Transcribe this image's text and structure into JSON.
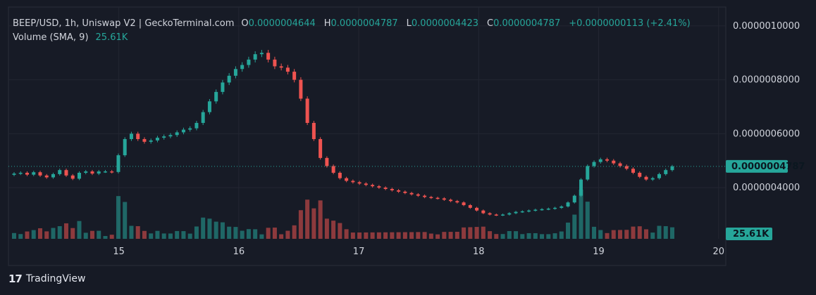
{
  "header": {
    "title": "BEEP/USD, 1h, Uniswap V2 | GeckoTerminal.com",
    "open_label": "O",
    "open": "0.0000004644",
    "high_label": "H",
    "high": "0.0000004787",
    "low_label": "L",
    "low": "0.0000004423",
    "close_label": "C",
    "close": "0.0000004787",
    "change": "+0.0000000113 (+2.41%)",
    "volume_label": "Volume (SMA, 9)",
    "volume_value": "25.61K"
  },
  "footer": {
    "brand": "TradingView"
  },
  "colors": {
    "background": "#161a25",
    "grid": "#232632",
    "up": "#26a69a",
    "down": "#ef5350",
    "text": "#d1d4dc",
    "price_tag": "#26a69a"
  },
  "chart_data": {
    "type": "candlestick",
    "title": "BEEP/USD, 1h, Uniswap V2 | GeckoTerminal.com",
    "price_axis": {
      "ticks": [
        "0.0000010000",
        "0.0000008000",
        "0.0000006000",
        "0.0000004000"
      ],
      "tick_values": [
        1e-06,
        8e-07,
        6e-07,
        4e-07
      ],
      "ylim": [
        2.1e-07,
        1.07e-06
      ]
    },
    "time_axis": {
      "ticks": [
        "15",
        "16",
        "17",
        "18",
        "19",
        "20"
      ],
      "tick_values": [
        15,
        16,
        17,
        18,
        19,
        20
      ],
      "xlim": [
        14.08,
        20.06
      ]
    },
    "current_price_label": "0.0000004787",
    "current_price": 4.787e-07,
    "volume_label": "25.61K",
    "candles_close": [
      4.52e-07,
      4.55e-07,
      4.48e-07,
      4.57e-07,
      4.45e-07,
      4.38e-07,
      4.5e-07,
      4.65e-07,
      4.45e-07,
      4.33e-07,
      4.55e-07,
      4.6e-07,
      4.52e-07,
      4.6e-07,
      4.6e-07,
      4.58e-07,
      5.2e-07,
      5.8e-07,
      6e-07,
      5.8e-07,
      5.7e-07,
      5.75e-07,
      5.85e-07,
      5.9e-07,
      5.95e-07,
      6.05e-07,
      6.15e-07,
      6.2e-07,
      6.4e-07,
      6.8e-07,
      7.2e-07,
      7.55e-07,
      7.9e-07,
      8.15e-07,
      8.4e-07,
      8.55e-07,
      8.75e-07,
      8.95e-07,
      9e-07,
      8.75e-07,
      8.5e-07,
      8.45e-07,
      8.3e-07,
      8e-07,
      7.3e-07,
      6.4e-07,
      5.8e-07,
      5.1e-07,
      4.8e-07,
      4.55e-07,
      4.35e-07,
      4.25e-07,
      4.2e-07,
      4.15e-07,
      4.1e-07,
      4.05e-07,
      4e-07,
      3.95e-07,
      3.9e-07,
      3.85e-07,
      3.8e-07,
      3.75e-07,
      3.7e-07,
      3.65e-07,
      3.62e-07,
      3.6e-07,
      3.55e-07,
      3.5e-07,
      3.45e-07,
      3.35e-07,
      3.25e-07,
      3.15e-07,
      3.05e-07,
      3e-07,
      2.98e-07,
      3e-07,
      3.05e-07,
      3.1e-07,
      3.12e-07,
      3.15e-07,
      3.18e-07,
      3.2e-07,
      3.22e-07,
      3.25e-07,
      3.3e-07,
      3.45e-07,
      3.7e-07,
      4.3e-07,
      4.8e-07,
      4.95e-07,
      5.05e-07,
      5e-07,
      4.9e-07,
      4.8e-07,
      4.7e-07,
      4.55e-07,
      4.4e-07,
      4.3e-07,
      4.35e-07,
      4.5e-07,
      4.65e-07,
      4.787e-07
    ]
  }
}
